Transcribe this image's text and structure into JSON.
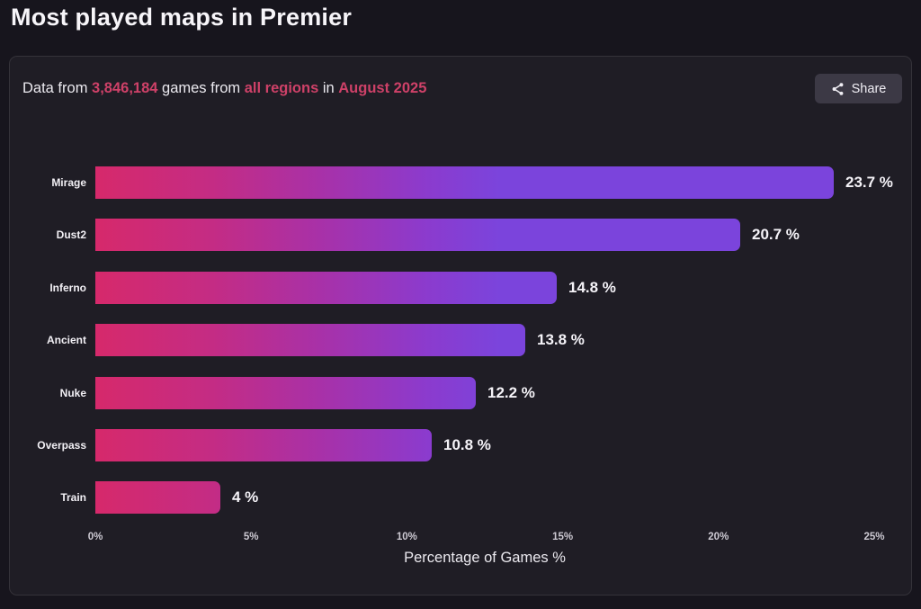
{
  "page": {
    "title": "Most played maps in Premier"
  },
  "card": {
    "subtitle": {
      "prefix": "Data from ",
      "games_count": "3,846,184",
      "between_1": " games from ",
      "regions": "all regions",
      "between_2": " in ",
      "period": "August 2025"
    },
    "share": {
      "label": "Share",
      "icon": "share-icon"
    }
  },
  "colors": {
    "page_bg": "#17151d",
    "card_bg": "#1f1d25",
    "accent_pink": "#ce4168",
    "bar_gradient_start": "#d6296b",
    "bar_gradient_end": "#7b44dc",
    "share_button_bg": "#3c3945"
  },
  "chart_data": {
    "type": "bar",
    "orientation": "horizontal",
    "title": "Most played maps in Premier",
    "categories": [
      "Mirage",
      "Dust2",
      "Inferno",
      "Ancient",
      "Nuke",
      "Overpass",
      "Train"
    ],
    "values": [
      23.7,
      20.7,
      14.8,
      13.8,
      12.2,
      10.8,
      4
    ],
    "value_labels": [
      "23.7 %",
      "20.7 %",
      "14.8 %",
      "13.8 %",
      "12.2 %",
      "10.8 %",
      "4 %"
    ],
    "xlabel": "Percentage of Games %",
    "x_ticks": [
      "0%",
      "5%",
      "10%",
      "15%",
      "20%",
      "25%"
    ],
    "xlim": [
      0,
      25
    ],
    "grid": false,
    "legend": false
  }
}
